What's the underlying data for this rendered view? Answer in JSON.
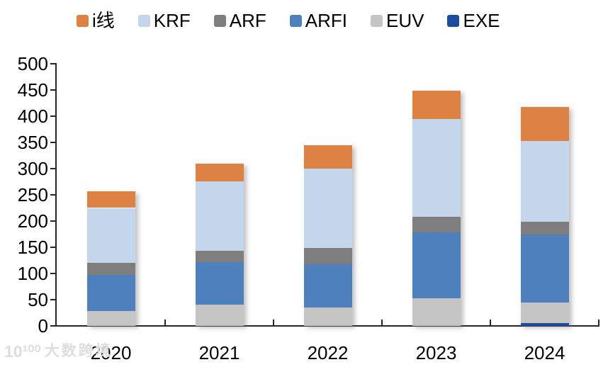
{
  "chart_data": {
    "type": "bar",
    "stacked": true,
    "title": "",
    "xlabel": "",
    "ylabel": "",
    "categories": [
      "2020",
      "2021",
      "2022",
      "2023",
      "2024"
    ],
    "series": [
      {
        "name": "i线",
        "color": "#DE8244",
        "values": [
          32,
          33,
          45,
          54,
          65
        ]
      },
      {
        "name": "KRF",
        "color": "#C3D6EC",
        "values": [
          105,
          133,
          152,
          187,
          154
        ]
      },
      {
        "name": "ARF",
        "color": "#7E7E7E",
        "values": [
          23,
          22,
          30,
          30,
          25
        ]
      },
      {
        "name": "ARFI",
        "color": "#4E80BE",
        "values": [
          69,
          81,
          83,
          125,
          130
        ]
      },
      {
        "name": "EUV",
        "color": "#C5C5C5",
        "values": [
          28,
          40,
          35,
          53,
          39
        ]
      },
      {
        "name": "EXE",
        "color": "#1B4D9E",
        "values": [
          0,
          0,
          0,
          0,
          5
        ]
      }
    ],
    "stack_order_bottom_to_top": [
      "EXE",
      "EUV",
      "ARFI",
      "ARF",
      "KRF",
      "i线"
    ],
    "totals": [
      257,
      309,
      345,
      449,
      418
    ],
    "ylim": [
      0,
      500
    ],
    "ytick_step": 50,
    "yticks": [
      0,
      50,
      100,
      150,
      200,
      250,
      300,
      350,
      400,
      450,
      500
    ],
    "grid": false,
    "legend_position": "top",
    "axis_color": "#262626",
    "text_color": "#000000"
  },
  "watermark": {
    "logo_text": "10¹⁰⁰",
    "brand": "大数跨境"
  }
}
